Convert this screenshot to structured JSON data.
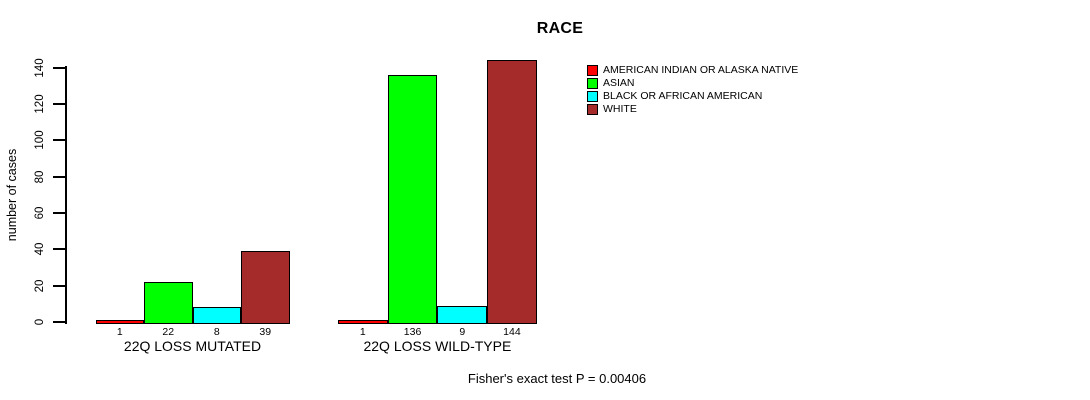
{
  "chart_data": {
    "type": "bar",
    "title": "RACE",
    "ylabel": "number of cases",
    "xlabel": "",
    "ylim": [
      0,
      140
    ],
    "yticks": [
      0,
      20,
      40,
      60,
      80,
      100,
      120,
      140
    ],
    "grid": false,
    "legend_position": "top-right",
    "categories": [
      "22Q LOSS MUTATED",
      "22Q LOSS WILD-TYPE"
    ],
    "series": [
      {
        "name": "AMERICAN INDIAN OR ALASKA NATIVE",
        "color": "#FF0000",
        "values": [
          1,
          1
        ]
      },
      {
        "name": "ASIAN",
        "color": "#00FF00",
        "values": [
          22,
          136
        ]
      },
      {
        "name": "BLACK OR AFRICAN AMERICAN",
        "color": "#00FFFF",
        "values": [
          8,
          9
        ]
      },
      {
        "name": "WHITE",
        "color": "#A52A2A",
        "values": [
          39,
          144
        ]
      }
    ],
    "footnote": "Fisher's exact test P = 0.00406",
    "colors": {
      "text": "#000000",
      "background": "#FFFFFF",
      "axis": "#000000"
    }
  }
}
